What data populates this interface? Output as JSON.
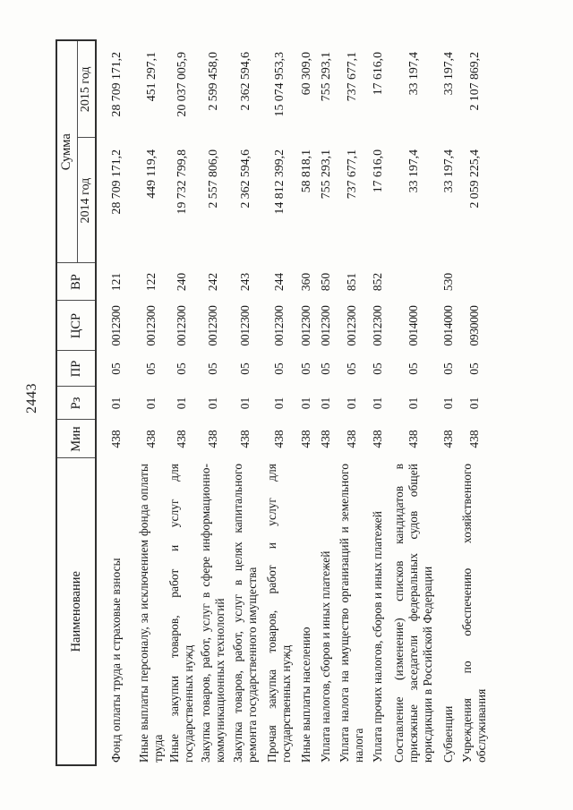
{
  "page": {
    "number": "2443"
  },
  "colors": {
    "paper": "#fdfdfb",
    "ink": "#1c1c1c",
    "grid": "#4d4d4d"
  },
  "table": {
    "headers": {
      "name": "Наименование",
      "min": "Мин",
      "rz": "Рз",
      "pr": "ПР",
      "csr": "ЦСР",
      "vr": "ВР",
      "sum": "Сумма",
      "y2014": "2014 год",
      "y2015": "2015 год"
    },
    "rows": [
      {
        "name": "Фонд оплаты труда и страховые взносы",
        "min": "438",
        "rz": "01",
        "pr": "05",
        "csr": "0012300",
        "vr": "121",
        "y2014": "28 709 171,2",
        "y2015": "28 709 171,2"
      },
      {
        "name": "Иные выплаты персоналу, за исключением фонда оплаты труда",
        "min": "438",
        "rz": "01",
        "pr": "05",
        "csr": "0012300",
        "vr": "122",
        "y2014": "449 119,4",
        "y2015": "451 297,1"
      },
      {
        "name": "Иные закупки товаров, работ и услуг для государственных нужд",
        "min": "438",
        "rz": "01",
        "pr": "05",
        "csr": "0012300",
        "vr": "240",
        "y2014": "19 732 799,8",
        "y2015": "20 037 005,9"
      },
      {
        "name": "Закупка товаров, работ, услуг в сфере информационно-коммуникационных технологий",
        "min": "438",
        "rz": "01",
        "pr": "05",
        "csr": "0012300",
        "vr": "242",
        "y2014": "2 557 806,0",
        "y2015": "2 599 458,0"
      },
      {
        "name": "Закупка товаров, работ, услуг в целях капитального ремонта государственного имущества",
        "min": "438",
        "rz": "01",
        "pr": "05",
        "csr": "0012300",
        "vr": "243",
        "y2014": "2 362 594,6",
        "y2015": "2 362 594,6"
      },
      {
        "name": "Прочая закупка товаров, работ и услуг для государственных нужд",
        "min": "438",
        "rz": "01",
        "pr": "05",
        "csr": "0012300",
        "vr": "244",
        "y2014": "14 812 399,2",
        "y2015": "15 074 953,3"
      },
      {
        "name": "Иные выплаты населению",
        "min": "438",
        "rz": "01",
        "pr": "05",
        "csr": "0012300",
        "vr": "360",
        "y2014": "58 818,1",
        "y2015": "60 309,0"
      },
      {
        "name": "Уплата налогов, сборов и иных платежей",
        "min": "438",
        "rz": "01",
        "pr": "05",
        "csr": "0012300",
        "vr": "850",
        "y2014": "755 293,1",
        "y2015": "755 293,1"
      },
      {
        "name": "Уплата налога на имущество организаций и земельного налога",
        "min": "438",
        "rz": "01",
        "pr": "05",
        "csr": "0012300",
        "vr": "851",
        "y2014": "737 677,1",
        "y2015": "737 677,1"
      },
      {
        "name": "Уплата прочих налогов, сборов и иных платежей",
        "min": "438",
        "rz": "01",
        "pr": "05",
        "csr": "0012300",
        "vr": "852",
        "y2014": "17 616,0",
        "y2015": "17 616,0"
      },
      {
        "name": "Составление (изменение) списков кандидатов в присяжные заседатели федеральных судов общей юрисдикции в Российской Федерации",
        "min": "438",
        "rz": "01",
        "pr": "05",
        "csr": "0014000",
        "vr": "",
        "y2014": "33 197,4",
        "y2015": "33 197,4"
      },
      {
        "name": "Субвенции",
        "min": "438",
        "rz": "01",
        "pr": "05",
        "csr": "0014000",
        "vr": "530",
        "y2014": "33 197,4",
        "y2015": "33 197,4"
      },
      {
        "name": "Учреждения по обеспечению хозяйственного обслуживания",
        "min": "438",
        "rz": "01",
        "pr": "05",
        "csr": "0930000",
        "vr": "",
        "y2014": "2 059 225,4",
        "y2015": "2 107 869,2"
      }
    ]
  }
}
